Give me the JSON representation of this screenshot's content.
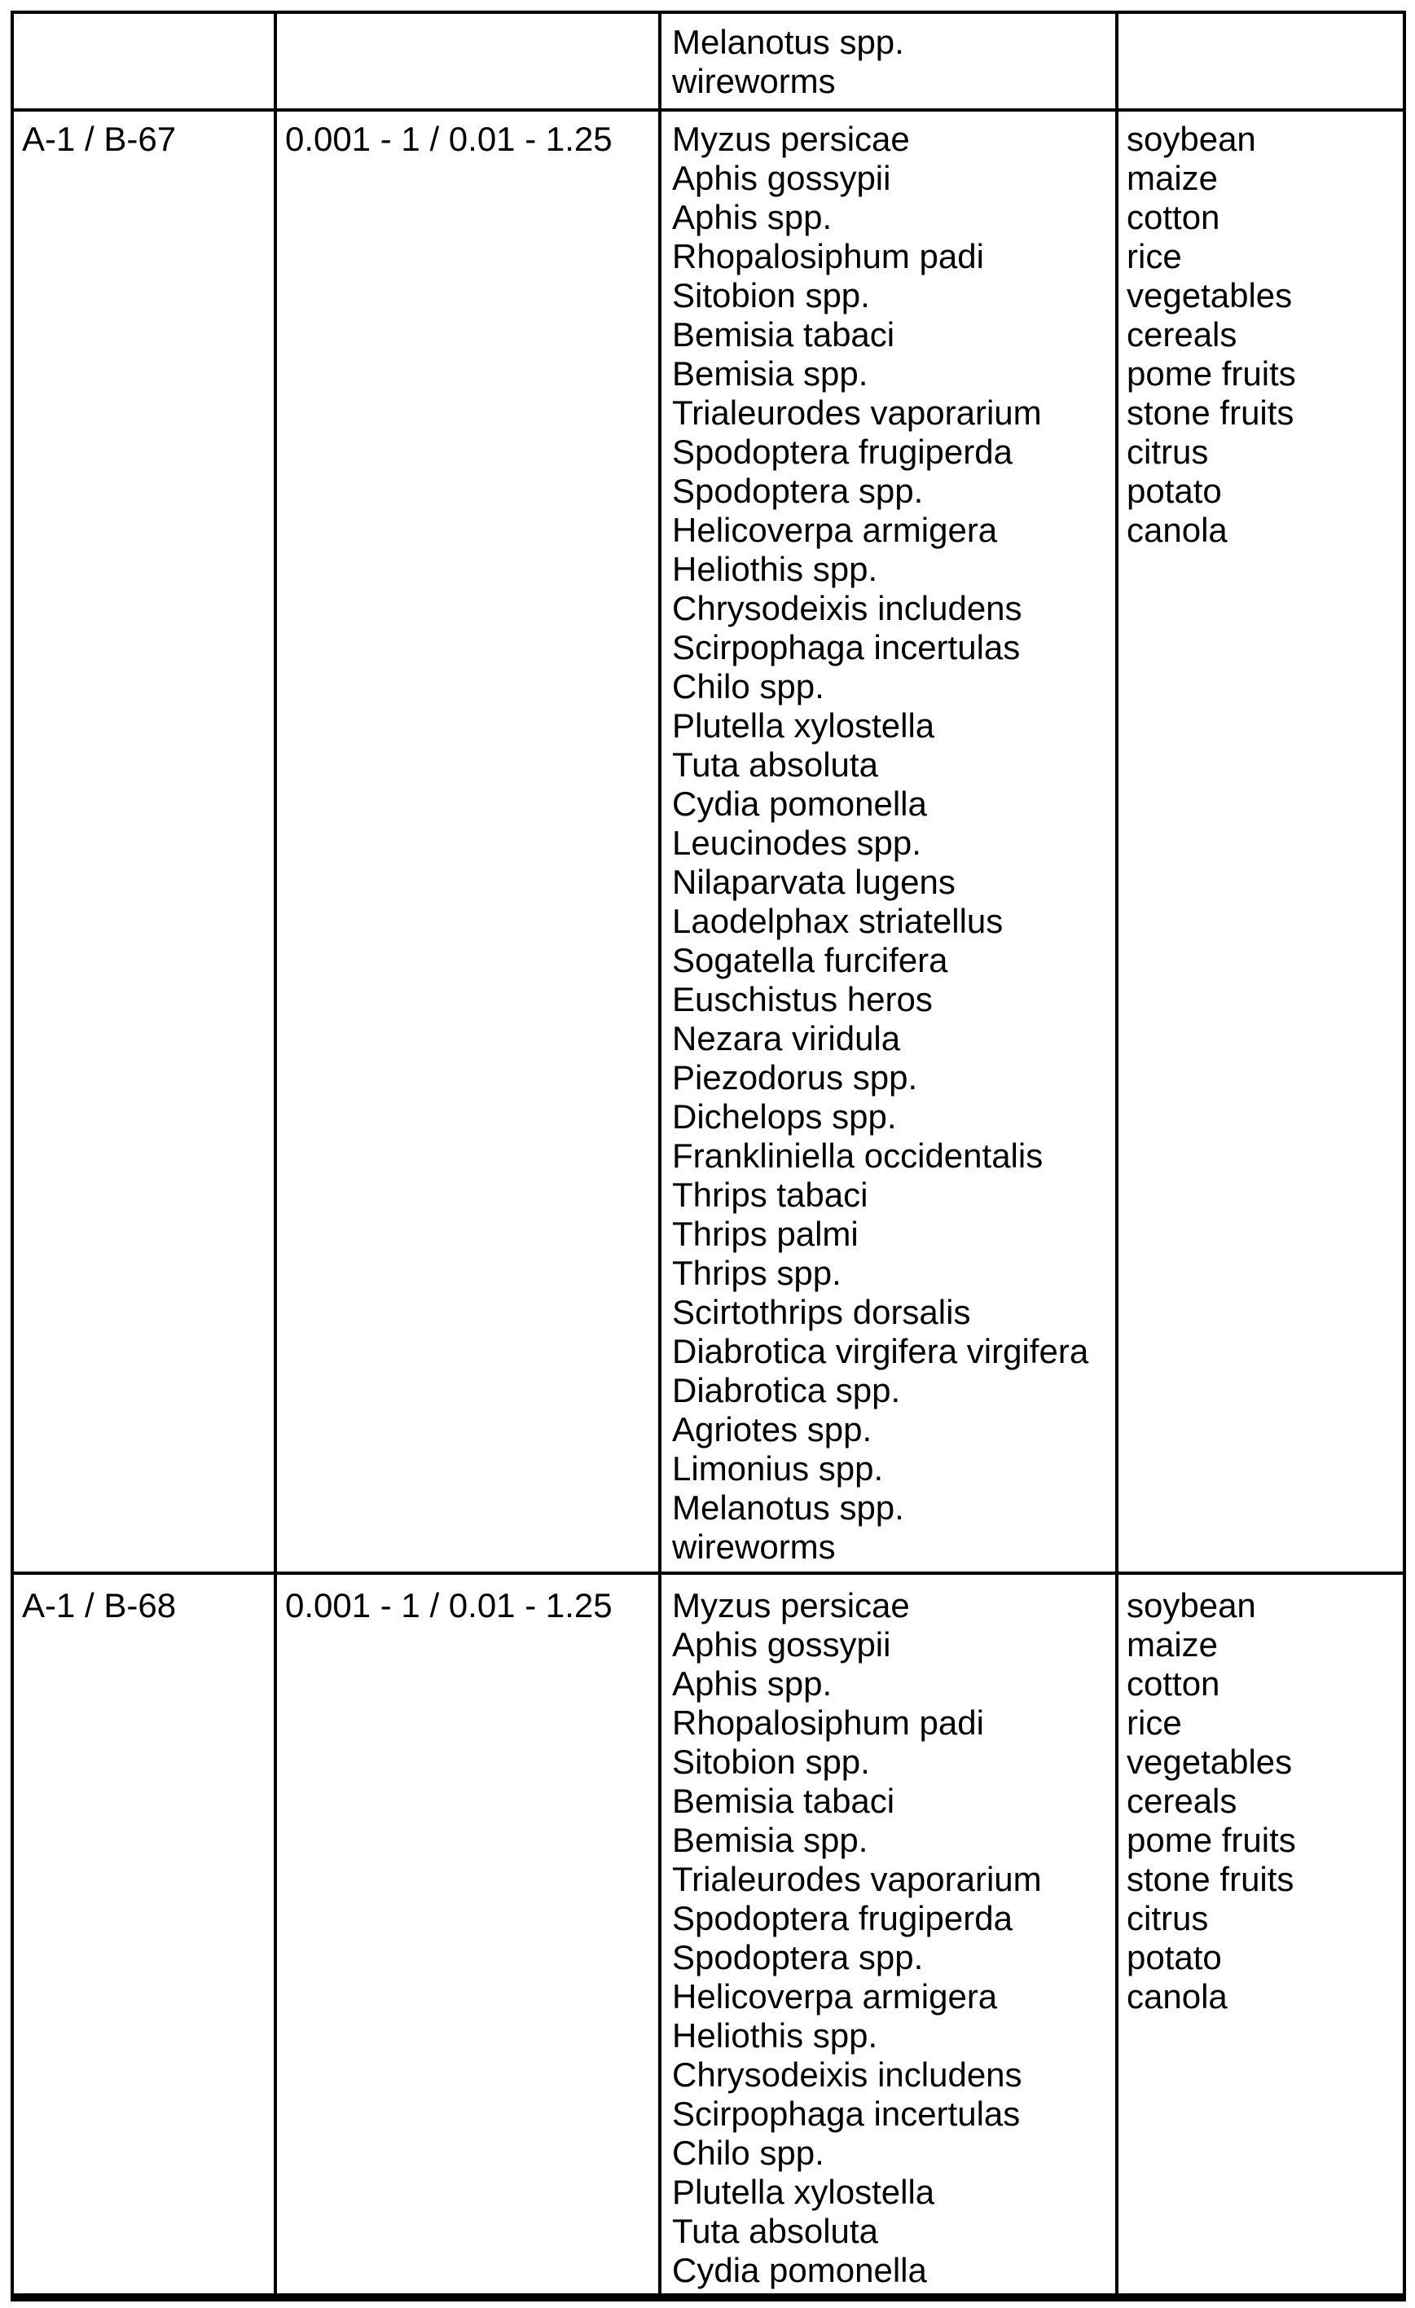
{
  "colors": {
    "ink": "#000000",
    "paper": "#ffffff"
  },
  "table": {
    "carryover_row": {
      "pests": [
        "Melanotus spp.",
        "wireworms"
      ]
    },
    "rows": [
      {
        "id": "A-1 / B-67",
        "rate": "0.001 - 1 / 0.01 - 1.25",
        "pests": [
          "Myzus persicae",
          "Aphis gossypii",
          "Aphis spp.",
          "Rhopalosiphum padi",
          "Sitobion spp.",
          "Bemisia tabaci",
          "Bemisia spp.",
          "Trialeurodes vaporarium",
          "Spodoptera frugiperda",
          "Spodoptera spp.",
          "Helicoverpa armigera",
          "Heliothis spp.",
          "Chrysodeixis includens",
          "Scirpophaga incertulas",
          "Chilo spp.",
          "Plutella xylostella",
          "Tuta absoluta",
          "Cydia pomonella",
          "Leucinodes spp.",
          "Nilaparvata lugens",
          "Laodelphax striatellus",
          "Sogatella furcifera",
          "Euschistus heros",
          "Nezara viridula",
          "Piezodorus spp.",
          "Dichelops spp.",
          "Frankliniella occidentalis",
          "Thrips tabaci",
          "Thrips palmi",
          "Thrips spp.",
          "Scirtothrips dorsalis",
          "Diabrotica virgifera virgifera",
          "Diabrotica spp.",
          "Agriotes spp.",
          "Limonius spp.",
          "Melanotus spp.",
          "wireworms"
        ],
        "crops": [
          "soybean",
          "maize",
          "cotton",
          "rice",
          "vegetables",
          "cereals",
          "pome fruits",
          "stone fruits",
          "citrus",
          "potato",
          "canola"
        ]
      },
      {
        "id": "A-1 / B-68",
        "rate": "0.001 - 1 / 0.01 - 1.25",
        "pests": [
          "Myzus persicae",
          "Aphis gossypii",
          "Aphis spp.",
          "Rhopalosiphum padi",
          "Sitobion spp.",
          "Bemisia tabaci",
          "Bemisia spp.",
          "Trialeurodes vaporarium",
          "Spodoptera frugiperda",
          "Spodoptera spp.",
          "Helicoverpa armigera",
          "Heliothis spp.",
          "Chrysodeixis includens",
          "Scirpophaga incertulas",
          "Chilo spp.",
          "Plutella xylostella",
          "Tuta absoluta",
          "Cydia pomonella"
        ],
        "crops": [
          "soybean",
          "maize",
          "cotton",
          "rice",
          "vegetables",
          "cereals",
          "pome fruits",
          "stone fruits",
          "citrus",
          "potato",
          "canola"
        ]
      }
    ]
  }
}
